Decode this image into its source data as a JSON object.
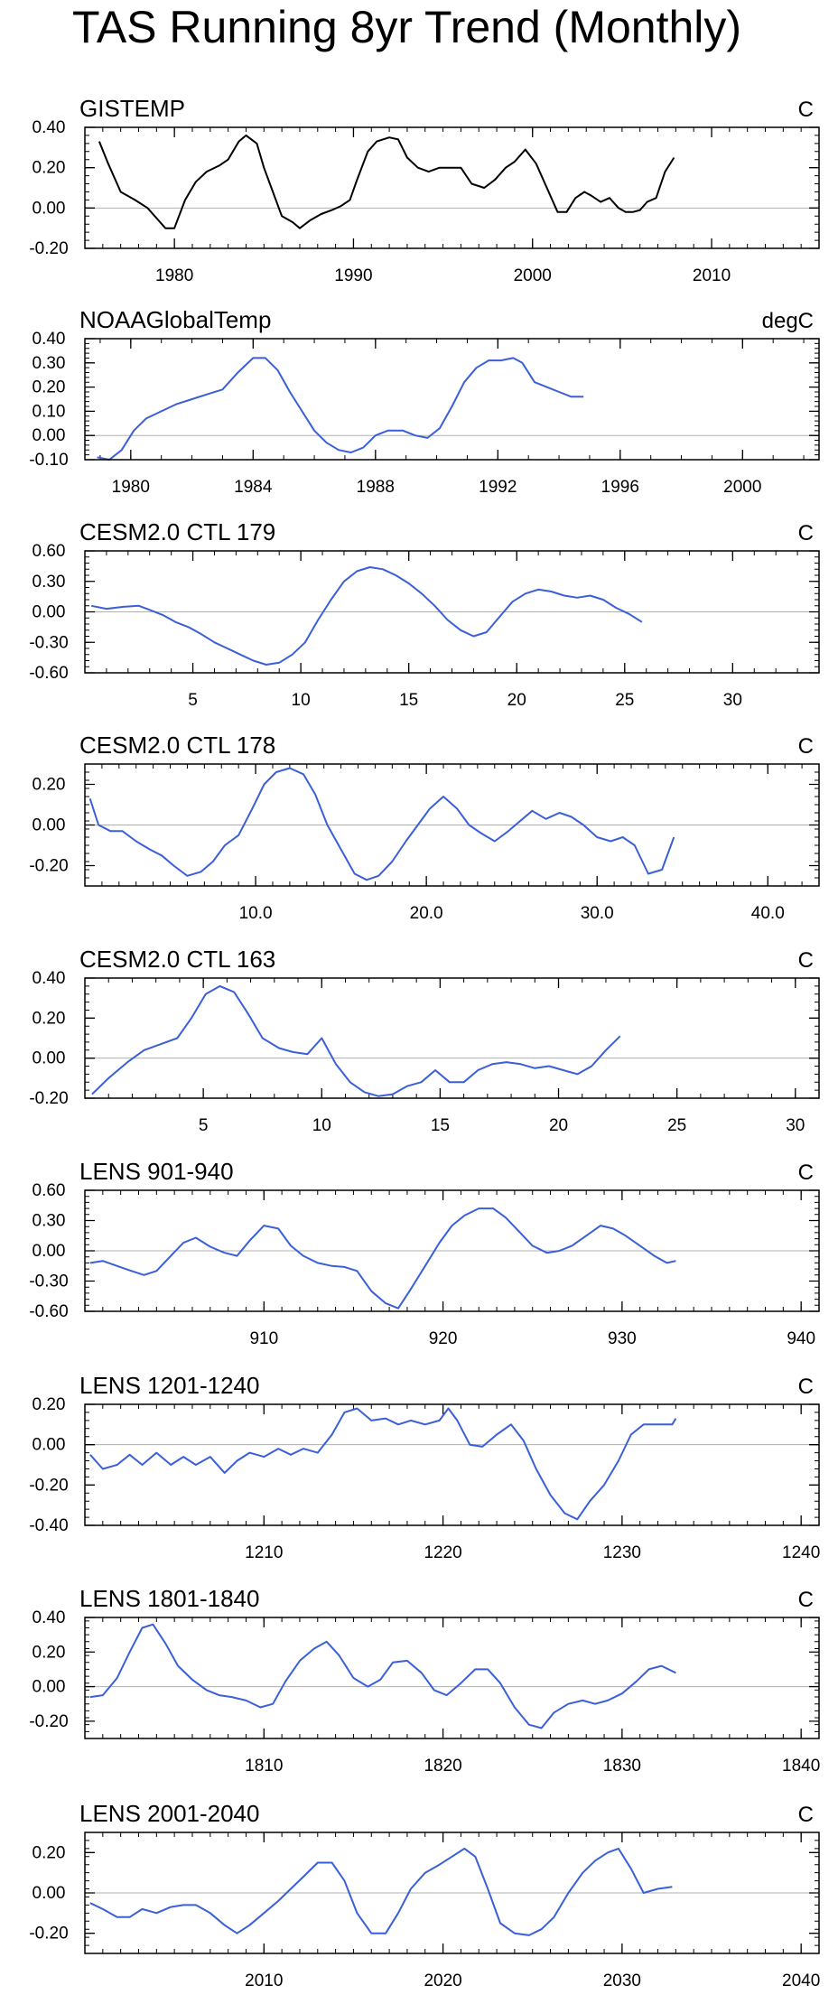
{
  "title": "TAS Running 8yr Trend (Monthly)",
  "colors": {
    "observed": "#000000",
    "model": "#3a5fd9",
    "zero_line": "#b0b0b0",
    "axis": "#000000"
  },
  "chart_data": [
    {
      "type": "line",
      "name": "GISTEMP",
      "units": "C",
      "line_color": "#000000",
      "xlim": [
        1975,
        2016
      ],
      "ylim": [
        -0.2,
        0.4
      ],
      "xticks": [
        1980,
        1990,
        2000,
        2010
      ],
      "xtick_labels": [
        "1980",
        "1990",
        "2000",
        "2010"
      ],
      "yticks": [
        -0.2,
        0.0,
        0.2,
        0.4
      ],
      "ytick_labels": [
        "-0.20",
        "0.00",
        "0.20",
        "0.40"
      ],
      "x": [
        1975.8,
        1976.3,
        1977.0,
        1977.8,
        1978.5,
        1979.0,
        1979.5,
        1980.0,
        1980.6,
        1981.2,
        1981.8,
        1982.5,
        1983.0,
        1983.6,
        1984.0,
        1984.6,
        1985.0,
        1985.5,
        1986.0,
        1986.6,
        1987.0,
        1987.6,
        1988.2,
        1988.8,
        1989.3,
        1989.8,
        1990.2,
        1990.8,
        1991.3,
        1992.0,
        1992.5,
        1993.0,
        1993.6,
        1994.2,
        1994.8,
        1995.5,
        1996.0,
        1996.6,
        1997.3,
        1997.9,
        1998.5,
        1999.0,
        1999.6,
        2000.2,
        2000.8,
        2001.4,
        2001.9,
        2002.4,
        2002.9,
        2003.3,
        2003.8,
        2004.3,
        2004.8,
        2005.2,
        2005.6,
        2006.0,
        2006.4,
        2006.9,
        2007.4,
        2007.9
      ],
      "y": [
        0.33,
        0.22,
        0.08,
        0.04,
        0.0,
        -0.05,
        -0.1,
        -0.1,
        0.04,
        0.13,
        0.18,
        0.21,
        0.24,
        0.33,
        0.36,
        0.32,
        0.2,
        0.08,
        -0.04,
        -0.07,
        -0.1,
        -0.06,
        -0.03,
        -0.01,
        0.01,
        0.04,
        0.14,
        0.28,
        0.33,
        0.35,
        0.34,
        0.25,
        0.2,
        0.18,
        0.2,
        0.2,
        0.2,
        0.12,
        0.1,
        0.14,
        0.2,
        0.23,
        0.29,
        0.22,
        0.1,
        -0.02,
        -0.02,
        0.05,
        0.08,
        0.06,
        0.03,
        0.05,
        -0.0,
        -0.02,
        -0.02,
        -0.01,
        0.03,
        0.05,
        0.18,
        0.25
      ]
    },
    {
      "type": "line",
      "name": "NOAAGlobalTemp",
      "units": "degC",
      "line_color": "#3a5fd9",
      "xlim": [
        1978.5,
        2002.5
      ],
      "ylim": [
        -0.1,
        0.4
      ],
      "xticks": [
        1980,
        1984,
        1988,
        1992,
        1996,
        2000
      ],
      "xtick_labels": [
        "1980",
        "1984",
        "1988",
        "1992",
        "1996",
        "2000"
      ],
      "yticks": [
        -0.1,
        0.0,
        0.1,
        0.2,
        0.3,
        0.4
      ],
      "ytick_labels": [
        "-0.10",
        "0.00",
        "0.10",
        "0.20",
        "0.30",
        "0.40"
      ],
      "x": [
        1978.9,
        1979.3,
        1979.7,
        1980.1,
        1980.5,
        1981.0,
        1981.5,
        1982.0,
        1982.5,
        1983.0,
        1983.5,
        1984.0,
        1984.4,
        1984.8,
        1985.2,
        1985.6,
        1986.0,
        1986.4,
        1986.8,
        1987.2,
        1987.6,
        1988.0,
        1988.4,
        1988.9,
        1989.3,
        1989.7,
        1990.1,
        1990.5,
        1990.9,
        1991.3,
        1991.7,
        1992.1,
        1992.5,
        1992.8,
        1993.2,
        1993.6,
        1994.0,
        1994.4,
        1994.8
      ],
      "y": [
        -0.09,
        -0.1,
        -0.06,
        0.02,
        0.07,
        0.1,
        0.13,
        0.15,
        0.17,
        0.19,
        0.26,
        0.32,
        0.32,
        0.27,
        0.18,
        0.1,
        0.02,
        -0.03,
        -0.06,
        -0.07,
        -0.05,
        0.0,
        0.02,
        0.02,
        0.0,
        -0.01,
        0.03,
        0.12,
        0.22,
        0.28,
        0.31,
        0.31,
        0.32,
        0.3,
        0.22,
        0.2,
        0.18,
        0.16,
        0.16
      ]
    },
    {
      "type": "line",
      "name": "CESM2.0 CTL 179",
      "units": "C",
      "line_color": "#3a5fd9",
      "xlim": [
        0,
        34
      ],
      "ylim": [
        -0.6,
        0.6
      ],
      "xticks": [
        5,
        10,
        15,
        20,
        25,
        30
      ],
      "xtick_labels": [
        "5",
        "10",
        "15",
        "20",
        "25",
        "30"
      ],
      "yticks": [
        -0.6,
        -0.3,
        0.0,
        0.3,
        0.6
      ],
      "ytick_labels": [
        "-0.60",
        "-0.30",
        "0.00",
        "0.30",
        "0.60"
      ],
      "x": [
        0.3,
        1.0,
        1.8,
        2.5,
        3.0,
        3.6,
        4.2,
        4.8,
        5.4,
        6.0,
        6.6,
        7.2,
        7.8,
        8.4,
        9.0,
        9.6,
        10.2,
        10.8,
        11.4,
        12.0,
        12.6,
        13.2,
        13.8,
        14.4,
        15.0,
        15.6,
        16.2,
        16.8,
        17.4,
        18.0,
        18.6,
        19.2,
        19.8,
        20.4,
        21.0,
        21.6,
        22.2,
        22.8,
        23.4,
        24.0,
        24.6,
        25.2,
        25.8
      ],
      "y": [
        0.06,
        0.03,
        0.05,
        0.06,
        0.02,
        -0.03,
        -0.1,
        -0.15,
        -0.22,
        -0.3,
        -0.36,
        -0.42,
        -0.48,
        -0.52,
        -0.5,
        -0.42,
        -0.3,
        -0.08,
        0.12,
        0.3,
        0.4,
        0.44,
        0.42,
        0.36,
        0.28,
        0.18,
        0.06,
        -0.08,
        -0.18,
        -0.24,
        -0.2,
        -0.05,
        0.1,
        0.18,
        0.22,
        0.2,
        0.16,
        0.14,
        0.16,
        0.12,
        0.04,
        -0.02,
        -0.1
      ]
    },
    {
      "type": "line",
      "name": "CESM2.0 CTL 178",
      "units": "C",
      "line_color": "#3a5fd9",
      "xlim": [
        0,
        43
      ],
      "ylim": [
        -0.3,
        0.3
      ],
      "xticks": [
        10,
        20,
        30,
        40
      ],
      "xtick_labels": [
        "10.0",
        "20.0",
        "30.0",
        "40.0"
      ],
      "yticks": [
        -0.2,
        0.0,
        0.2
      ],
      "ytick_labels": [
        "-0.20",
        "0.00",
        "0.20"
      ],
      "x": [
        0.3,
        0.8,
        1.5,
        2.2,
        3.0,
        3.8,
        4.5,
        5.2,
        6.0,
        6.8,
        7.5,
        8.2,
        9.0,
        9.8,
        10.5,
        11.2,
        12.0,
        12.8,
        13.5,
        14.2,
        15.0,
        15.8,
        16.5,
        17.2,
        18.0,
        18.8,
        19.5,
        20.2,
        21.0,
        21.8,
        22.5,
        23.2,
        24.0,
        24.8,
        25.5,
        26.2,
        27.0,
        27.8,
        28.5,
        29.2,
        30.0,
        30.8,
        31.5,
        32.2,
        33.0,
        33.8,
        34.5
      ],
      "y": [
        0.13,
        0.0,
        -0.03,
        -0.03,
        -0.08,
        -0.12,
        -0.15,
        -0.2,
        -0.25,
        -0.23,
        -0.18,
        -0.1,
        -0.05,
        0.08,
        0.2,
        0.26,
        0.28,
        0.25,
        0.15,
        0.0,
        -0.12,
        -0.24,
        -0.27,
        -0.25,
        -0.18,
        -0.08,
        0.0,
        0.08,
        0.14,
        0.08,
        0.0,
        -0.04,
        -0.08,
        -0.03,
        0.02,
        0.07,
        0.03,
        0.06,
        0.04,
        0.0,
        -0.06,
        -0.08,
        -0.06,
        -0.1,
        -0.24,
        -0.22,
        -0.06
      ]
    },
    {
      "type": "line",
      "name": "CESM2.0 CTL 163",
      "units": "C",
      "line_color": "#3a5fd9",
      "xlim": [
        0,
        31
      ],
      "ylim": [
        -0.2,
        0.4
      ],
      "xticks": [
        5,
        10,
        15,
        20,
        25,
        30
      ],
      "xtick_labels": [
        "5",
        "10",
        "15",
        "20",
        "25",
        "30"
      ],
      "yticks": [
        -0.2,
        0.0,
        0.2,
        0.4
      ],
      "ytick_labels": [
        "-0.20",
        "0.00",
        "0.20",
        "0.40"
      ],
      "x": [
        0.3,
        1.0,
        1.8,
        2.5,
        3.2,
        3.9,
        4.5,
        5.1,
        5.7,
        6.3,
        6.9,
        7.5,
        8.2,
        8.8,
        9.4,
        10.0,
        10.6,
        11.2,
        11.8,
        12.4,
        13.0,
        13.6,
        14.2,
        14.8,
        15.4,
        16.0,
        16.6,
        17.2,
        17.8,
        18.4,
        19.0,
        19.6,
        20.2,
        20.8,
        21.4,
        22.0,
        22.6
      ],
      "y": [
        -0.18,
        -0.1,
        -0.02,
        0.04,
        0.07,
        0.1,
        0.2,
        0.32,
        0.36,
        0.33,
        0.22,
        0.1,
        0.05,
        0.03,
        0.02,
        0.1,
        -0.03,
        -0.12,
        -0.17,
        -0.19,
        -0.18,
        -0.14,
        -0.12,
        -0.06,
        -0.12,
        -0.12,
        -0.06,
        -0.03,
        -0.02,
        -0.03,
        -0.05,
        -0.04,
        -0.06,
        -0.08,
        -0.04,
        0.04,
        0.11
      ]
    },
    {
      "type": "line",
      "name": "LENS 901-940",
      "units": "C",
      "line_color": "#3a5fd9",
      "xlim": [
        900,
        941
      ],
      "ylim": [
        -0.6,
        0.6
      ],
      "xticks": [
        910,
        920,
        930,
        940
      ],
      "xtick_labels": [
        "910",
        "920",
        "930",
        "940"
      ],
      "yticks": [
        -0.6,
        -0.3,
        0.0,
        0.3,
        0.6
      ],
      "ytick_labels": [
        "-0.60",
        "-0.30",
        "0.00",
        "0.30",
        "0.60"
      ],
      "x": [
        900.3,
        901.0,
        901.8,
        902.6,
        903.3,
        904.0,
        904.8,
        905.5,
        906.2,
        907.0,
        907.8,
        908.5,
        909.2,
        910.0,
        910.8,
        911.5,
        912.2,
        913.0,
        913.8,
        914.5,
        915.2,
        916.0,
        916.8,
        917.5,
        918.2,
        919.0,
        919.8,
        920.5,
        921.2,
        922.0,
        922.8,
        923.5,
        924.2,
        925.0,
        925.8,
        926.5,
        927.2,
        928.0,
        928.8,
        929.5,
        930.2,
        931.0,
        931.8,
        932.5,
        933.0
      ],
      "y": [
        -0.12,
        -0.1,
        -0.15,
        -0.2,
        -0.24,
        -0.2,
        -0.05,
        0.08,
        0.13,
        0.04,
        -0.02,
        -0.05,
        0.1,
        0.25,
        0.22,
        0.05,
        -0.05,
        -0.12,
        -0.15,
        -0.16,
        -0.2,
        -0.4,
        -0.52,
        -0.57,
        -0.38,
        -0.15,
        0.08,
        0.25,
        0.35,
        0.42,
        0.42,
        0.33,
        0.2,
        0.05,
        -0.02,
        0.0,
        0.05,
        0.15,
        0.25,
        0.22,
        0.15,
        0.05,
        -0.05,
        -0.12,
        -0.1
      ]
    },
    {
      "type": "line",
      "name": "LENS 1201-1240",
      "units": "C",
      "line_color": "#3a5fd9",
      "xlim": [
        1200,
        1241
      ],
      "ylim": [
        -0.4,
        0.2
      ],
      "xticks": [
        1210,
        1220,
        1230,
        1240
      ],
      "xtick_labels": [
        "1210",
        "1220",
        "1230",
        "1240"
      ],
      "yticks": [
        -0.4,
        -0.2,
        0.0,
        0.2
      ],
      "ytick_labels": [
        "-0.40",
        "-0.20",
        "0.00",
        "0.20"
      ],
      "x": [
        1200.3,
        1201.0,
        1201.8,
        1202.5,
        1203.2,
        1204.0,
        1204.8,
        1205.5,
        1206.2,
        1207.0,
        1207.8,
        1208.5,
        1209.2,
        1210.0,
        1210.8,
        1211.5,
        1212.2,
        1213.0,
        1213.8,
        1214.5,
        1215.2,
        1216.0,
        1216.8,
        1217.5,
        1218.2,
        1219.0,
        1219.8,
        1220.3,
        1220.8,
        1221.5,
        1222.2,
        1223.0,
        1223.8,
        1224.5,
        1225.2,
        1226.0,
        1226.8,
        1227.5,
        1228.2,
        1229.0,
        1229.8,
        1230.5,
        1231.2,
        1232.0,
        1232.8,
        1233.0
      ],
      "y": [
        -0.05,
        -0.12,
        -0.1,
        -0.05,
        -0.1,
        -0.04,
        -0.1,
        -0.06,
        -0.1,
        -0.06,
        -0.14,
        -0.08,
        -0.04,
        -0.06,
        -0.02,
        -0.05,
        -0.02,
        -0.04,
        0.05,
        0.16,
        0.18,
        0.12,
        0.13,
        0.1,
        0.12,
        0.1,
        0.12,
        0.18,
        0.12,
        0.0,
        -0.01,
        0.05,
        0.1,
        0.02,
        -0.12,
        -0.25,
        -0.34,
        -0.37,
        -0.28,
        -0.2,
        -0.08,
        0.05,
        0.1,
        0.1,
        0.1,
        0.13
      ]
    },
    {
      "type": "line",
      "name": "LENS 1801-1840",
      "units": "C",
      "line_color": "#3a5fd9",
      "xlim": [
        1800,
        1841
      ],
      "ylim": [
        -0.3,
        0.4
      ],
      "xticks": [
        1810,
        1820,
        1830,
        1840
      ],
      "xtick_labels": [
        "1810",
        "1820",
        "1830",
        "1840"
      ],
      "yticks": [
        -0.2,
        0.0,
        0.2,
        0.4
      ],
      "ytick_labels": [
        "-0.20",
        "0.00",
        "0.20",
        "0.40"
      ],
      "x": [
        1800.3,
        1801.0,
        1801.8,
        1802.5,
        1803.2,
        1803.8,
        1804.5,
        1805.2,
        1806.0,
        1806.8,
        1807.5,
        1808.2,
        1809.0,
        1809.8,
        1810.5,
        1811.2,
        1812.0,
        1812.8,
        1813.5,
        1814.2,
        1815.0,
        1815.8,
        1816.5,
        1817.2,
        1818.0,
        1818.8,
        1819.5,
        1820.2,
        1821.0,
        1821.8,
        1822.5,
        1823.2,
        1824.0,
        1824.8,
        1825.5,
        1826.2,
        1827.0,
        1827.8,
        1828.5,
        1829.2,
        1830.0,
        1830.8,
        1831.5,
        1832.2,
        1833.0
      ],
      "y": [
        -0.06,
        -0.05,
        0.05,
        0.2,
        0.34,
        0.36,
        0.25,
        0.12,
        0.04,
        -0.02,
        -0.05,
        -0.06,
        -0.08,
        -0.12,
        -0.1,
        0.03,
        0.15,
        0.22,
        0.26,
        0.18,
        0.05,
        0.0,
        0.04,
        0.14,
        0.15,
        0.08,
        -0.02,
        -0.05,
        0.02,
        0.1,
        0.1,
        0.02,
        -0.12,
        -0.22,
        -0.24,
        -0.15,
        -0.1,
        -0.08,
        -0.1,
        -0.08,
        -0.04,
        0.03,
        0.1,
        0.12,
        0.08
      ]
    },
    {
      "type": "line",
      "name": "LENS 2001-2040",
      "units": "C",
      "line_color": "#3a5fd9",
      "xlim": [
        2000,
        2041
      ],
      "ylim": [
        -0.3,
        0.3
      ],
      "xticks": [
        2010,
        2020,
        2030,
        2040
      ],
      "xtick_labels": [
        "2010",
        "2020",
        "2030",
        "2040"
      ],
      "yticks": [
        -0.2,
        0.0,
        0.2
      ],
      "ytick_labels": [
        "-0.20",
        "0.00",
        "0.20"
      ],
      "x": [
        2000.3,
        2001.0,
        2001.8,
        2002.5,
        2003.2,
        2004.0,
        2004.8,
        2005.5,
        2006.2,
        2007.0,
        2007.8,
        2008.5,
        2009.2,
        2010.0,
        2010.8,
        2011.5,
        2012.2,
        2013.0,
        2013.8,
        2014.5,
        2015.2,
        2016.0,
        2016.8,
        2017.5,
        2018.2,
        2019.0,
        2019.8,
        2020.5,
        2021.2,
        2021.8,
        2022.5,
        2023.2,
        2024.0,
        2024.8,
        2025.5,
        2026.2,
        2027.0,
        2027.8,
        2028.5,
        2029.2,
        2029.8,
        2030.5,
        2031.2,
        2032.0,
        2032.8
      ],
      "y": [
        -0.05,
        -0.08,
        -0.12,
        -0.12,
        -0.08,
        -0.1,
        -0.07,
        -0.06,
        -0.06,
        -0.1,
        -0.16,
        -0.2,
        -0.16,
        -0.1,
        -0.04,
        0.02,
        0.08,
        0.15,
        0.15,
        0.06,
        -0.1,
        -0.2,
        -0.2,
        -0.1,
        0.02,
        0.1,
        0.14,
        0.18,
        0.22,
        0.18,
        0.02,
        -0.15,
        -0.2,
        -0.21,
        -0.18,
        -0.12,
        0.0,
        0.1,
        0.16,
        0.2,
        0.22,
        0.12,
        0.0,
        0.02,
        0.03
      ]
    }
  ]
}
